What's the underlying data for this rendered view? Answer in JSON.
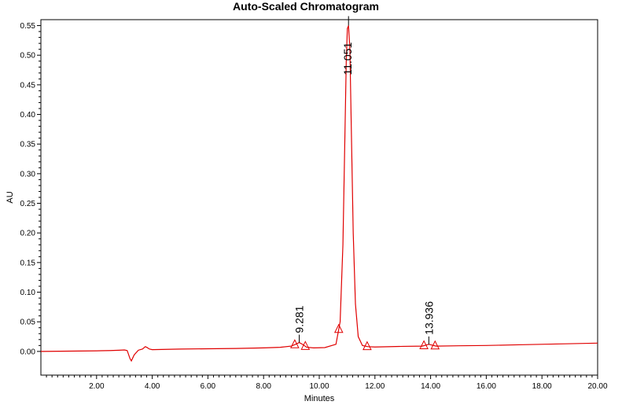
{
  "chart_data": {
    "type": "line",
    "title": "Auto-Scaled Chromatogram",
    "xlabel": "Minutes",
    "ylabel": "AU",
    "xlim": [
      0,
      20
    ],
    "ylim": [
      -0.04,
      0.56
    ],
    "x_ticks": [
      2,
      4,
      6,
      8,
      10,
      12,
      14,
      16,
      18,
      20
    ],
    "x_tick_labels": [
      "2.00",
      "4.00",
      "6.00",
      "8.00",
      "10.00",
      "12.00",
      "14.00",
      "16.00",
      "18.00",
      "20.00"
    ],
    "y_ticks": [
      0,
      0.05,
      0.1,
      0.15,
      0.2,
      0.25,
      0.3,
      0.35,
      0.4,
      0.45,
      0.5,
      0.55
    ],
    "y_tick_labels": [
      "0.00",
      "0.05",
      "0.10",
      "0.15",
      "0.20",
      "0.25",
      "0.30",
      "0.35",
      "0.40",
      "0.45",
      "0.50",
      "0.55"
    ],
    "grid": false,
    "series": [
      {
        "color": "#e00000",
        "x": [
          0,
          1,
          2,
          2.5,
          2.8,
          3.0,
          3.1,
          3.2,
          3.25,
          3.35,
          3.5,
          3.65,
          3.75,
          3.8,
          3.9,
          4.0,
          4.5,
          5,
          6,
          7,
          8,
          8.6,
          9.0,
          9.15,
          9.281,
          9.4,
          9.55,
          9.8,
          10.2,
          10.6,
          10.75,
          10.85,
          10.92,
          10.97,
          11.01,
          11.051,
          11.1,
          11.15,
          11.22,
          11.3,
          11.4,
          11.55,
          11.75,
          12,
          13,
          13.7,
          13.936,
          14.2,
          15,
          16,
          17,
          18,
          19,
          20
        ],
        "y": [
          0.0,
          0.0005,
          0.001,
          0.0015,
          0.002,
          0.0025,
          0.0015,
          -0.012,
          -0.016,
          -0.006,
          0.002,
          0.004,
          0.008,
          0.007,
          0.004,
          0.003,
          0.0035,
          0.004,
          0.0045,
          0.005,
          0.006,
          0.007,
          0.009,
          0.012,
          0.015,
          0.012,
          0.007,
          0.006,
          0.0065,
          0.012,
          0.05,
          0.18,
          0.36,
          0.49,
          0.545,
          0.55,
          0.51,
          0.38,
          0.2,
          0.08,
          0.025,
          0.01,
          0.008,
          0.0075,
          0.0085,
          0.009,
          0.012,
          0.009,
          0.0095,
          0.01,
          0.011,
          0.012,
          0.013,
          0.014
        ]
      }
    ],
    "peaks": [
      {
        "rt": 9.281,
        "label": "9.281",
        "height": 0.015,
        "start": 9.12,
        "end": 9.5
      },
      {
        "rt": 11.051,
        "label": "11.051",
        "height": 0.55,
        "start": 10.7,
        "end": 11.72
      },
      {
        "rt": 13.936,
        "label": "13.936",
        "height": 0.012,
        "start": 13.76,
        "end": 14.16
      }
    ]
  }
}
